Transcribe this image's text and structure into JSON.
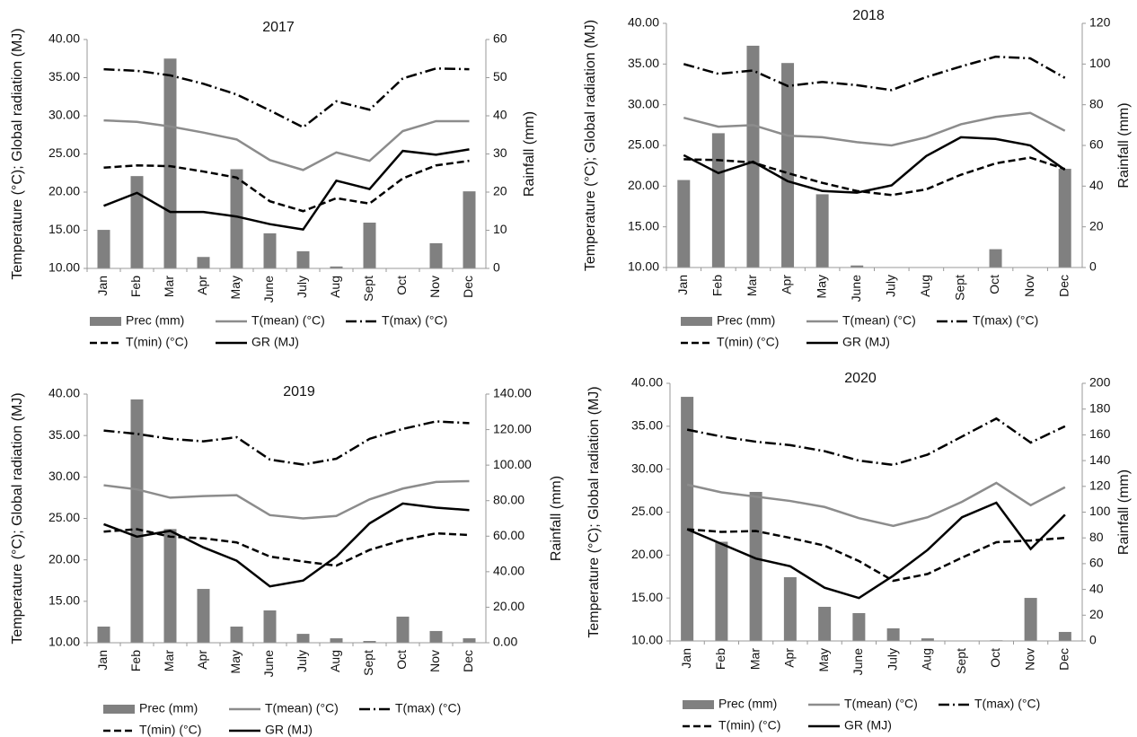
{
  "chart_data": [
    {
      "type": "combo",
      "title": "2017",
      "categories": [
        "Jan",
        "Feb",
        "Mar",
        "Apr",
        "May",
        "June",
        "July",
        "Aug",
        "Sept",
        "Oct",
        "Nov",
        "Dec"
      ],
      "ylabel": "Temperature (°C); Global radiation (MJ)",
      "y2label": "Rainfall (mm)",
      "ylim": [
        10,
        40
      ],
      "yticks": [
        {
          "value": 10,
          "label": "10.00"
        },
        {
          "value": 15,
          "label": "15.00"
        },
        {
          "value": 20,
          "label": "20.00"
        },
        {
          "value": 25,
          "label": "25.00"
        },
        {
          "value": 30,
          "label": "30.00"
        },
        {
          "value": 35,
          "label": "35.00"
        },
        {
          "value": 40,
          "label": "40.00"
        }
      ],
      "y2lim": [
        0,
        60
      ],
      "y2ticks": [
        0,
        10,
        20,
        30,
        40,
        50,
        60
      ],
      "series": [
        {
          "name": "Prec (mm)",
          "type": "bar",
          "axis": "y2",
          "color": "#808080",
          "values": [
            10.1,
            24.2,
            55,
            3,
            26,
            9.2,
            4.5,
            0.5,
            12,
            0,
            6.6,
            20.2
          ]
        },
        {
          "name": "T(mean) (°C)",
          "type": "line",
          "style": "solid",
          "color": "#8c8c8c",
          "values": [
            29.4,
            29.2,
            28.6,
            27.8,
            26.9,
            24.2,
            22.9,
            25.2,
            24.1,
            28,
            29.3,
            29.3
          ]
        },
        {
          "name": "T(max) (°C)",
          "type": "line",
          "style": "dashdot",
          "color": "#000000",
          "values": [
            36.1,
            35.9,
            35.3,
            34.2,
            32.8,
            30.7,
            28.5,
            31.9,
            30.8,
            34.9,
            36.2,
            36.1
          ]
        },
        {
          "name": "T(min) (°C)",
          "type": "line",
          "style": "dashed",
          "color": "#000000",
          "values": [
            23.2,
            23.5,
            23.4,
            22.7,
            21.9,
            18.8,
            17.5,
            19.2,
            18.5,
            21.8,
            23.5,
            24.1
          ]
        },
        {
          "name": "GR (MJ)",
          "type": "line",
          "style": "solid",
          "color": "#000000",
          "values": [
            18.2,
            19.9,
            17.4,
            17.4,
            16.8,
            15.8,
            15.1,
            21.5,
            20.4,
            25.4,
            24.9,
            25.6
          ]
        }
      ]
    },
    {
      "type": "combo",
      "title": "2018",
      "categories": [
        "Jan",
        "Feb",
        "Mar",
        "Apr",
        "May",
        "June",
        "July",
        "Aug",
        "Sept",
        "Oct",
        "Nov",
        "Dec"
      ],
      "ylabel": "Temperature (°C); Global radiation (MJ)",
      "y2label": "Rainfall (mm)",
      "ylim": [
        10,
        40
      ],
      "yticks": [
        {
          "value": 10,
          "label": "10.00"
        },
        {
          "value": 15,
          "label": "15.00"
        },
        {
          "value": 20,
          "label": "20.00"
        },
        {
          "value": 25,
          "label": "25.00"
        },
        {
          "value": 30,
          "label": "30.00"
        },
        {
          "value": 35,
          "label": "35.00"
        },
        {
          "value": 40,
          "label": "40.00"
        }
      ],
      "y2lim": [
        0,
        120
      ],
      "y2ticks": [
        0,
        20,
        40,
        60,
        80,
        100,
        120
      ],
      "series": [
        {
          "name": "Prec (mm)",
          "type": "bar",
          "axis": "y2",
          "color": "#808080",
          "values": [
            43,
            66,
            109,
            100.5,
            36,
            1,
            0,
            0,
            0,
            9,
            0,
            48.5
          ]
        },
        {
          "name": "T(mean) (°C)",
          "type": "line",
          "style": "solid",
          "color": "#8c8c8c",
          "values": [
            28.4,
            27.3,
            27.5,
            26.2,
            26,
            25.4,
            25,
            26,
            27.6,
            28.5,
            29,
            26.8
          ]
        },
        {
          "name": "T(max) (°C)",
          "type": "line",
          "style": "dashdot",
          "color": "#000000",
          "values": [
            35,
            33.8,
            34.2,
            32.3,
            32.8,
            32.4,
            31.8,
            33.4,
            34.7,
            35.9,
            35.7,
            33.3
          ]
        },
        {
          "name": "T(min) (°C)",
          "type": "line",
          "style": "dashed",
          "color": "#000000",
          "values": [
            23.3,
            23.2,
            22.9,
            21.6,
            20.4,
            19.4,
            18.9,
            19.6,
            21.4,
            22.8,
            23.5,
            22.1
          ]
        },
        {
          "name": "GR (MJ)",
          "type": "line",
          "style": "solid",
          "color": "#000000",
          "values": [
            23.8,
            21.6,
            23,
            20.6,
            19.4,
            19.2,
            20.1,
            23.7,
            26,
            25.8,
            25,
            22
          ]
        }
      ]
    },
    {
      "type": "combo",
      "title": "2019",
      "categories": [
        "Jan",
        "Feb",
        "Mar",
        "Apr",
        "May",
        "June",
        "July",
        "Aug",
        "Sept",
        "Oct",
        "Nov",
        "Dec"
      ],
      "ylabel": "Temperature (°C); Global radiation (MJ)",
      "y2label": "Rainfall (mm)",
      "ylim": [
        10,
        40
      ],
      "yticks": [
        {
          "value": 10,
          "label": "10.00"
        },
        {
          "value": 15,
          "label": "15.00"
        },
        {
          "value": 20,
          "label": "20.00"
        },
        {
          "value": 25,
          "label": "25.00"
        },
        {
          "value": 30,
          "label": "30.00"
        },
        {
          "value": 35,
          "label": "35.00"
        },
        {
          "value": 40,
          "label": "40.00"
        }
      ],
      "y2lim": [
        0,
        140
      ],
      "y2ticks": [
        {
          "value": 0,
          "label": "0.00"
        },
        {
          "value": 20,
          "label": "20.00"
        },
        {
          "value": 40,
          "label": "40.00"
        },
        {
          "value": 60,
          "label": "60.00"
        },
        {
          "value": 80,
          "label": "80.00"
        },
        {
          "value": 100,
          "label": "100.00"
        },
        {
          "value": 120,
          "label": "120.00"
        },
        {
          "value": 140,
          "label": "140.00"
        }
      ],
      "series": [
        {
          "name": "Prec (mm)",
          "type": "bar",
          "axis": "y2",
          "color": "#808080",
          "values": [
            9.1,
            137,
            64,
            30.3,
            9.1,
            18.2,
            5,
            2.5,
            1,
            14.7,
            6.6,
            2.5
          ]
        },
        {
          "name": "T(mean) (°C)",
          "type": "line",
          "style": "solid",
          "color": "#8c8c8c",
          "values": [
            29,
            28.5,
            27.5,
            27.7,
            27.8,
            25.4,
            25,
            25.3,
            27.3,
            28.6,
            29.4,
            29.5
          ]
        },
        {
          "name": "T(max) (°C)",
          "type": "line",
          "style": "dashdot",
          "color": "#000000",
          "values": [
            35.6,
            35.2,
            34.6,
            34.3,
            34.8,
            32.1,
            31.5,
            32.2,
            34.6,
            35.8,
            36.7,
            36.5
          ]
        },
        {
          "name": "T(min) (°C)",
          "type": "line",
          "style": "dashed",
          "color": "#000000",
          "values": [
            23.4,
            23.7,
            22.8,
            22.6,
            22.1,
            20.4,
            19.8,
            19.3,
            21.2,
            22.4,
            23.2,
            23
          ]
        },
        {
          "name": "GR (MJ)",
          "type": "line",
          "style": "solid",
          "color": "#000000",
          "values": [
            24.3,
            22.8,
            23.5,
            21.5,
            19.9,
            16.8,
            17.5,
            20.4,
            24.4,
            26.8,
            26.3,
            26
          ]
        }
      ]
    },
    {
      "type": "combo",
      "title": "2020",
      "categories": [
        "Jan",
        "Feb",
        "Mar",
        "Apr",
        "May",
        "June",
        "July",
        "Aug",
        "Sept",
        "Oct",
        "Nov",
        "Dec"
      ],
      "ylabel": "Temperature (°C); Global radiation (MJ)",
      "y2label": "Rainfall (mm)",
      "ylim": [
        10,
        40
      ],
      "yticks": [
        {
          "value": 10,
          "label": "10.00"
        },
        {
          "value": 15,
          "label": "15.00"
        },
        {
          "value": 20,
          "label": "20.00"
        },
        {
          "value": 25,
          "label": "25.00"
        },
        {
          "value": 30,
          "label": "30.00"
        },
        {
          "value": 35,
          "label": "35.00"
        },
        {
          "value": 40,
          "label": "40.00"
        }
      ],
      "y2lim": [
        0,
        200
      ],
      "y2ticks": [
        0,
        20,
        40,
        60,
        80,
        100,
        120,
        140,
        160,
        180,
        200
      ],
      "series": [
        {
          "name": "Prec (mm)",
          "type": "bar",
          "axis": "y2",
          "color": "#808080",
          "values": [
            189.5,
            77,
            115.7,
            49.5,
            26.5,
            21.6,
            9.8,
            2,
            0,
            0.5,
            33.4,
            7
          ]
        },
        {
          "name": "T(mean) (°C)",
          "type": "line",
          "style": "solid",
          "color": "#8c8c8c",
          "values": [
            28.2,
            27.3,
            26.8,
            26.3,
            25.6,
            24.3,
            23.4,
            24.4,
            26.2,
            28.4,
            25.8,
            27.9
          ]
        },
        {
          "name": "T(max) (°C)",
          "type": "line",
          "style": "dashdot",
          "color": "#000000",
          "values": [
            34.6,
            33.8,
            33.2,
            32.8,
            32.1,
            31,
            30.5,
            31.7,
            33.8,
            35.9,
            33.1,
            35
          ]
        },
        {
          "name": "T(min) (°C)",
          "type": "line",
          "style": "dashed",
          "color": "#000000",
          "values": [
            23,
            22.7,
            22.8,
            22,
            21.1,
            19.3,
            17,
            17.8,
            19.7,
            21.5,
            21.7,
            22
          ]
        },
        {
          "name": "GR (MJ)",
          "type": "line",
          "style": "solid",
          "color": "#000000",
          "values": [
            23,
            21.3,
            19.6,
            18.7,
            16.2,
            15,
            17.6,
            20.6,
            24.4,
            26.1,
            20.7,
            24.7
          ]
        }
      ]
    }
  ]
}
